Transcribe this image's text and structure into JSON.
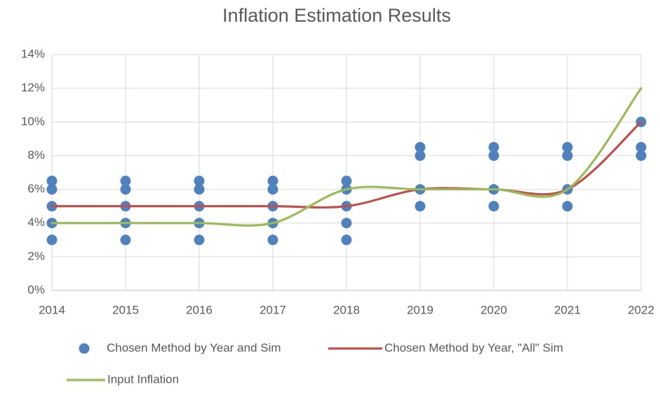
{
  "chart_data": {
    "type": "line",
    "title": "Inflation Estimation Results",
    "x": [
      2014,
      2015,
      2016,
      2017,
      2018,
      2019,
      2020,
      2021,
      2022
    ],
    "xlim": [
      2014,
      2022
    ],
    "xticks": [
      2014,
      2015,
      2016,
      2017,
      2018,
      2019,
      2020,
      2021,
      2022
    ],
    "ylim": [
      0,
      14
    ],
    "yticks": [
      {
        "value": 0,
        "label": "0%"
      },
      {
        "value": 2,
        "label": "2%"
      },
      {
        "value": 4,
        "label": "4%"
      },
      {
        "value": 6,
        "label": "6%"
      },
      {
        "value": 8,
        "label": "8%"
      },
      {
        "value": 10,
        "label": "10%"
      },
      {
        "value": 12,
        "label": "12%"
      },
      {
        "value": 14,
        "label": "14%"
      }
    ],
    "grid": true,
    "smooth": true,
    "series": [
      {
        "name": "Chosen Method by Year and Sim",
        "type": "scatter",
        "color": "#4f81bd",
        "x": [
          2014,
          2014,
          2014,
          2014,
          2014,
          2015,
          2015,
          2015,
          2015,
          2015,
          2016,
          2016,
          2016,
          2016,
          2016,
          2017,
          2017,
          2017,
          2017,
          2017,
          2018,
          2018,
          2018,
          2018,
          2018,
          2019,
          2019,
          2019,
          2019,
          2020,
          2020,
          2020,
          2020,
          2021,
          2021,
          2021,
          2021,
          2022,
          2022,
          2022
        ],
        "values": [
          6.5,
          6,
          5,
          4,
          3,
          6.5,
          6,
          5,
          4,
          3,
          6.5,
          6,
          5,
          4,
          3,
          6.5,
          6,
          5,
          4,
          3,
          6.5,
          6,
          5,
          4,
          3,
          8.5,
          8,
          6,
          5,
          8.5,
          8,
          6,
          5,
          8.5,
          8,
          6,
          5,
          10,
          8.5,
          8
        ]
      },
      {
        "name": "Chosen Method by Year, \"All\" Sim",
        "type": "line",
        "color": "#c0504d",
        "values": [
          5,
          5,
          5,
          5,
          5,
          6,
          6,
          6,
          10
        ]
      },
      {
        "name": "Input Inflation",
        "type": "line",
        "color": "#9bbb59",
        "values": [
          4,
          4,
          4,
          4,
          6,
          6,
          6,
          6,
          12
        ]
      }
    ]
  }
}
